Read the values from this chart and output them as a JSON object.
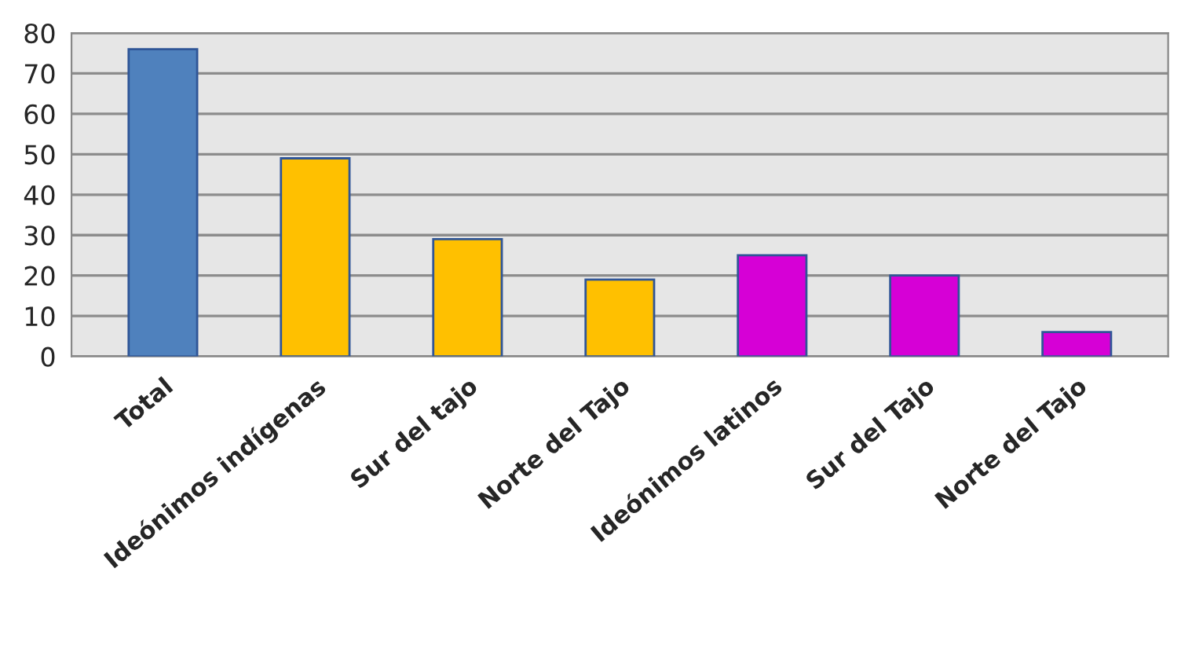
{
  "chart_data": {
    "type": "bar",
    "categories": [
      "Total",
      "Ideónimos indígenas",
      "Sur del tajo",
      "Norte del Tajo",
      "Ideónimos latinos",
      "Sur del Tajo",
      "Norte del Tajo"
    ],
    "values": [
      76,
      49,
      29,
      19,
      25,
      20,
      6
    ],
    "colors": [
      "#4f81bd",
      "#ffc000",
      "#ffc000",
      "#ffc000",
      "#d600d6",
      "#d600d6",
      "#d600d6"
    ],
    "ylim": [
      0,
      80
    ],
    "yticks": [
      0,
      10,
      20,
      30,
      40,
      50,
      60,
      70,
      80
    ],
    "grid": "y"
  }
}
